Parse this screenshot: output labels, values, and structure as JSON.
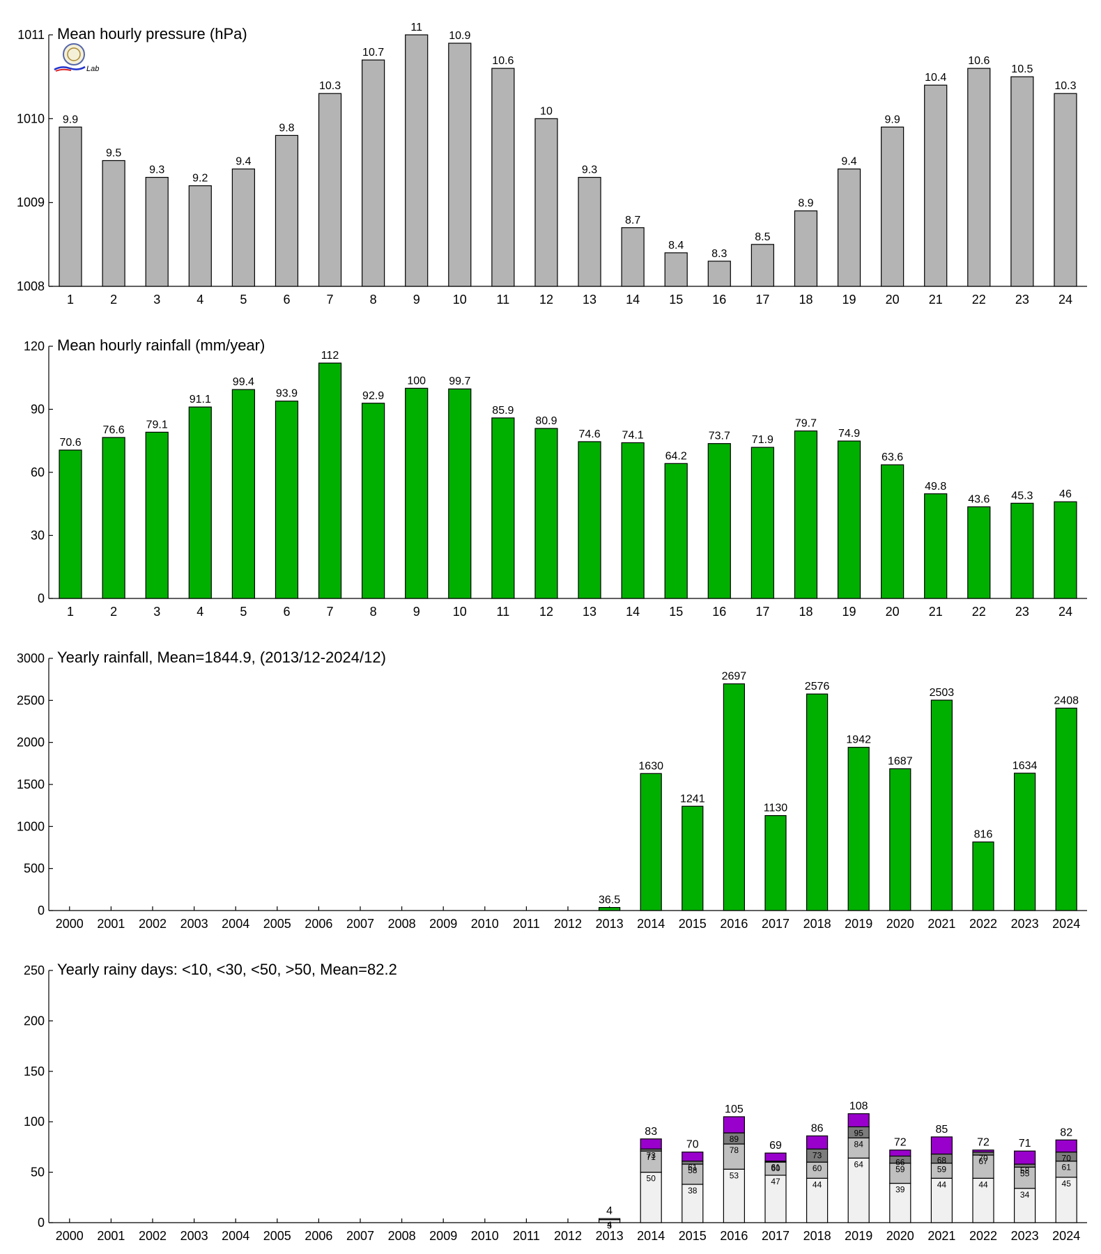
{
  "colors": {
    "pressure_bar": "#b4b4b4",
    "rain_bar": "#00b000",
    "days_lt10": "#f0f0f0",
    "days_lt30": "#c0c0c0",
    "days_lt50": "#7c7c7c",
    "days_gt50": "#9900cc"
  },
  "logo": {
    "text": "Lab"
  },
  "chart_data": [
    {
      "type": "bar",
      "title": "Mean hourly pressure (hPa)",
      "categories": [
        "1",
        "2",
        "3",
        "4",
        "5",
        "6",
        "7",
        "8",
        "9",
        "10",
        "11",
        "12",
        "13",
        "14",
        "15",
        "16",
        "17",
        "18",
        "19",
        "20",
        "21",
        "22",
        "23",
        "24"
      ],
      "values": [
        1009.9,
        1009.5,
        1009.3,
        1009.2,
        1009.4,
        1009.8,
        1010.3,
        1010.7,
        1011,
        1010.9,
        1010.6,
        1010,
        1009.3,
        1008.7,
        1008.4,
        1008.3,
        1008.5,
        1008.9,
        1009.4,
        1009.9,
        1010.4,
        1010.6,
        1010.5,
        1010.3
      ],
      "data_labels": [
        "9.9",
        "9.5",
        "9.3",
        "9.2",
        "9.4",
        "9.8",
        "10.3",
        "10.7",
        "11",
        "10.9",
        "10.6",
        "10",
        "9.3",
        "8.7",
        "8.4",
        "8.3",
        "8.5",
        "8.9",
        "9.4",
        "9.9",
        "10.4",
        "10.6",
        "10.5",
        "10.3"
      ],
      "ylim": [
        1008,
        1011
      ],
      "yticks": [
        "1008",
        "1009",
        "1010",
        "1011"
      ],
      "grid": false
    },
    {
      "type": "bar",
      "title": "Mean hourly rainfall (mm/year)",
      "categories": [
        "1",
        "2",
        "3",
        "4",
        "5",
        "6",
        "7",
        "8",
        "9",
        "10",
        "11",
        "12",
        "13",
        "14",
        "15",
        "16",
        "17",
        "18",
        "19",
        "20",
        "21",
        "22",
        "23",
        "24"
      ],
      "values": [
        70.6,
        76.6,
        79.1,
        91.1,
        99.4,
        93.9,
        112,
        92.9,
        100,
        99.7,
        85.9,
        80.9,
        74.6,
        74.1,
        64.2,
        73.7,
        71.9,
        79.7,
        74.9,
        63.6,
        49.8,
        43.6,
        45.3,
        46
      ],
      "data_labels": [
        "70.6",
        "76.6",
        "79.1",
        "91.1",
        "99.4",
        "93.9",
        "112",
        "92.9",
        "100",
        "99.7",
        "85.9",
        "80.9",
        "74.6",
        "74.1",
        "64.2",
        "73.7",
        "71.9",
        "79.7",
        "74.9",
        "63.6",
        "49.8",
        "43.6",
        "45.3",
        "46"
      ],
      "ylim": [
        0,
        120
      ],
      "yticks": [
        "0",
        "30",
        "60",
        "90",
        "120"
      ],
      "grid": false
    },
    {
      "type": "bar",
      "title": "Yearly rainfall, Mean=1844.9, (2013/12-2024/12)",
      "categories": [
        "2000",
        "2001",
        "2002",
        "2003",
        "2004",
        "2005",
        "2006",
        "2007",
        "2008",
        "2009",
        "2010",
        "2011",
        "2012",
        "2013",
        "2014",
        "2015",
        "2016",
        "2017",
        "2018",
        "2019",
        "2020",
        "2021",
        "2022",
        "2023",
        "2024"
      ],
      "values": [
        null,
        null,
        null,
        null,
        null,
        null,
        null,
        null,
        null,
        null,
        null,
        null,
        null,
        36.5,
        1630,
        1241,
        2697,
        1130,
        2576,
        1942,
        1687,
        2503,
        816,
        1634,
        2408
      ],
      "data_labels": [
        "",
        "",
        "",
        "",
        "",
        "",
        "",
        "",
        "",
        "",
        "",
        "",
        "",
        "36.5",
        "1630",
        "1241",
        "2697",
        "1130",
        "2576",
        "1942",
        "1687",
        "2503",
        "816",
        "1634",
        "2408"
      ],
      "ylim": [
        0,
        3000
      ],
      "yticks": [
        "0",
        "500",
        "1000",
        "1500",
        "2000",
        "2500",
        "3000"
      ],
      "grid": false
    },
    {
      "type": "bar",
      "stacked": true,
      "title": "Yearly rainy days: <10, <30, <50, >50, Mean=82.2",
      "categories": [
        "2000",
        "2001",
        "2002",
        "2003",
        "2004",
        "2005",
        "2006",
        "2007",
        "2008",
        "2009",
        "2010",
        "2011",
        "2012",
        "2013",
        "2014",
        "2015",
        "2016",
        "2017",
        "2018",
        "2019",
        "2020",
        "2021",
        "2022",
        "2023",
        "2024"
      ],
      "cumulative": {
        "lt10": [
          null,
          null,
          null,
          null,
          null,
          null,
          null,
          null,
          null,
          null,
          null,
          null,
          null,
          3,
          50,
          38,
          53,
          47,
          44,
          64,
          39,
          44,
          44,
          34,
          45
        ],
        "lt30": [
          null,
          null,
          null,
          null,
          null,
          null,
          null,
          null,
          null,
          null,
          null,
          null,
          null,
          4,
          71,
          58,
          78,
          60,
          60,
          84,
          59,
          59,
          67,
          55,
          61
        ],
        "lt50": [
          null,
          null,
          null,
          null,
          null,
          null,
          null,
          null,
          null,
          null,
          null,
          null,
          null,
          4,
          73,
          61,
          89,
          61,
          73,
          95,
          66,
          68,
          70,
          58,
          70
        ],
        "total": [
          null,
          null,
          null,
          null,
          null,
          null,
          null,
          null,
          null,
          null,
          null,
          null,
          null,
          4,
          83,
          70,
          105,
          69,
          86,
          108,
          72,
          85,
          72,
          71,
          82
        ]
      },
      "segment_labels": {
        "lt10": [
          "",
          "",
          "",
          "",
          "",
          "",
          "",
          "",
          "",
          "",
          "",
          "",
          "",
          "3",
          "50",
          "38",
          "53",
          "47",
          "44",
          "64",
          "39",
          "44",
          "44",
          "34",
          "45"
        ],
        "lt30": [
          "",
          "",
          "",
          "",
          "",
          "",
          "",
          "",
          "",
          "",
          "",
          "",
          "",
          "4",
          "71",
          "58",
          "78",
          "60",
          "60",
          "84",
          "59",
          "59",
          "67",
          "55",
          "61"
        ],
        "lt50": [
          "",
          "",
          "",
          "",
          "",
          "",
          "",
          "",
          "",
          "",
          "",
          "",
          "",
          "4",
          "73",
          "61",
          "89",
          "61",
          "73",
          "95",
          "66",
          "68",
          "70",
          "58",
          "70"
        ]
      },
      "total_labels": [
        "",
        "",
        "",
        "",
        "",
        "",
        "",
        "",
        "",
        "",
        "",
        "",
        "",
        "4",
        "83",
        "70",
        "105",
        "69",
        "86",
        "108",
        "72",
        "85",
        "72",
        "71",
        "82"
      ],
      "ylim": [
        0,
        250
      ],
      "yticks": [
        "0",
        "50",
        "100",
        "150",
        "200",
        "250"
      ],
      "grid": false
    }
  ]
}
